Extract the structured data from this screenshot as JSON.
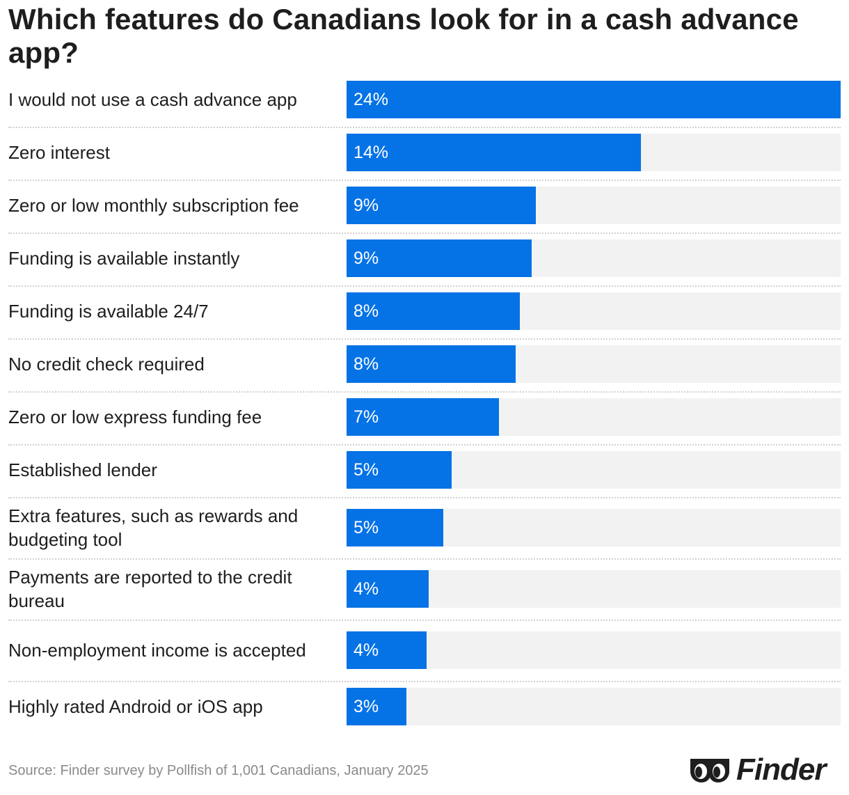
{
  "title": "Which features do Canadians look for in a cash advance app?",
  "chart_data": {
    "type": "bar",
    "orientation": "horizontal",
    "categories": [
      "I would not use a cash advance app",
      "Zero interest",
      "Zero or low monthly subscription fee",
      "Funding is available instantly",
      "Funding is available 24/7",
      "No credit check required",
      "Zero or low express funding fee",
      "Established lender",
      "Extra features, such as rewards and budgeting tool",
      "Payments are reported to the credit bureau",
      "Non-employment income is accepted",
      "Highly rated Android or iOS app"
    ],
    "values": [
      24,
      14.3,
      9.2,
      9,
      8.4,
      8.2,
      7.4,
      5.1,
      4.7,
      4,
      3.9,
      2.9
    ],
    "value_labels": [
      "24%",
      "14%",
      "9%",
      "9%",
      "8%",
      "8%",
      "7%",
      "5%",
      "5%",
      "4%",
      "4%",
      "3%"
    ],
    "xlim": [
      0,
      24
    ],
    "grid": false,
    "legend": "none",
    "bar_color": "#0572e6",
    "track_color": "#f2f2f2"
  },
  "source": "Source: Finder survey by Pollfish of 1,001 Canadians, January 2025",
  "logo": {
    "text": "Finder",
    "icon": "finder-eyes-icon"
  }
}
